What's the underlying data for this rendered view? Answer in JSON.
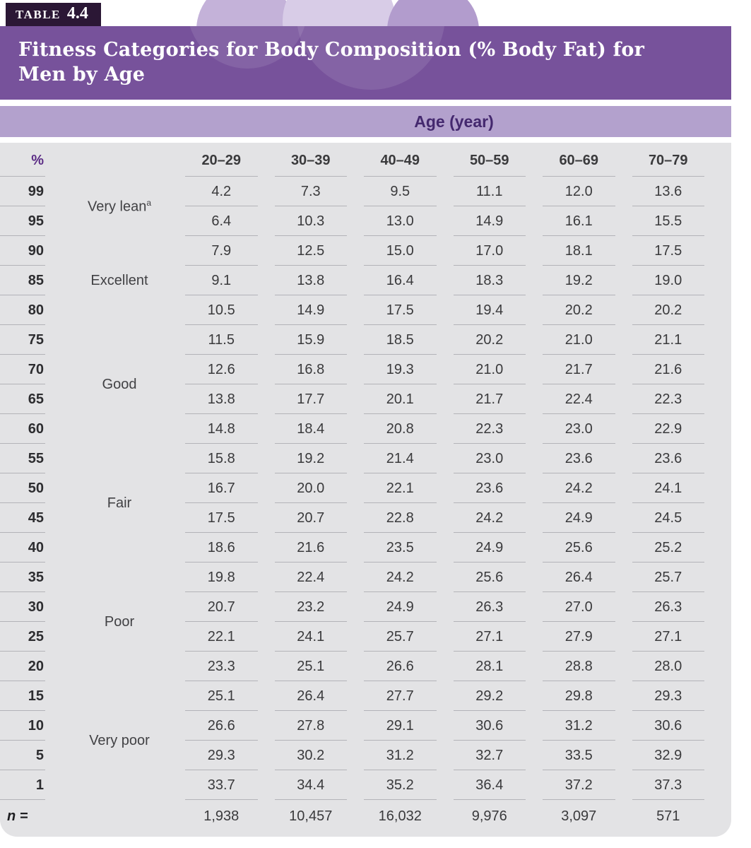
{
  "header": {
    "tab_label": "TABLE",
    "tab_number": "4.4",
    "title": "Fitness Categories for Body Composition (% Body Fat) for Men by Age"
  },
  "table": {
    "age_band_label": "Age (year)",
    "percent_header": "%",
    "age_columns": [
      "20–29",
      "30–39",
      "40–49",
      "50–59",
      "60–69",
      "70–79"
    ],
    "category_spans": [
      {
        "label": "Very lean",
        "sup": "a",
        "start": 0,
        "count": 2
      },
      {
        "label": "Excellent",
        "start": 2,
        "count": 3
      },
      {
        "label": "Good",
        "start": 5,
        "count": 4
      },
      {
        "label": "Fair",
        "start": 9,
        "count": 4
      },
      {
        "label": "Poor",
        "start": 13,
        "count": 4
      },
      {
        "label": "Very poor",
        "start": 17,
        "count": 4
      }
    ],
    "rows": [
      {
        "percentile": "99",
        "values": [
          "4.2",
          "7.3",
          "9.5",
          "11.1",
          "12.0",
          "13.6"
        ]
      },
      {
        "percentile": "95",
        "values": [
          "6.4",
          "10.3",
          "13.0",
          "14.9",
          "16.1",
          "15.5"
        ]
      },
      {
        "percentile": "90",
        "values": [
          "7.9",
          "12.5",
          "15.0",
          "17.0",
          "18.1",
          "17.5"
        ]
      },
      {
        "percentile": "85",
        "values": [
          "9.1",
          "13.8",
          "16.4",
          "18.3",
          "19.2",
          "19.0"
        ]
      },
      {
        "percentile": "80",
        "values": [
          "10.5",
          "14.9",
          "17.5",
          "19.4",
          "20.2",
          "20.2"
        ]
      },
      {
        "percentile": "75",
        "values": [
          "11.5",
          "15.9",
          "18.5",
          "20.2",
          "21.0",
          "21.1"
        ]
      },
      {
        "percentile": "70",
        "values": [
          "12.6",
          "16.8",
          "19.3",
          "21.0",
          "21.7",
          "21.6"
        ]
      },
      {
        "percentile": "65",
        "values": [
          "13.8",
          "17.7",
          "20.1",
          "21.7",
          "22.4",
          "22.3"
        ]
      },
      {
        "percentile": "60",
        "values": [
          "14.8",
          "18.4",
          "20.8",
          "22.3",
          "23.0",
          "22.9"
        ]
      },
      {
        "percentile": "55",
        "values": [
          "15.8",
          "19.2",
          "21.4",
          "23.0",
          "23.6",
          "23.6"
        ]
      },
      {
        "percentile": "50",
        "values": [
          "16.7",
          "20.0",
          "22.1",
          "23.6",
          "24.2",
          "24.1"
        ]
      },
      {
        "percentile": "45",
        "values": [
          "17.5",
          "20.7",
          "22.8",
          "24.2",
          "24.9",
          "24.5"
        ]
      },
      {
        "percentile": "40",
        "values": [
          "18.6",
          "21.6",
          "23.5",
          "24.9",
          "25.6",
          "25.2"
        ]
      },
      {
        "percentile": "35",
        "values": [
          "19.8",
          "22.4",
          "24.2",
          "25.6",
          "26.4",
          "25.7"
        ]
      },
      {
        "percentile": "30",
        "values": [
          "20.7",
          "23.2",
          "24.9",
          "26.3",
          "27.0",
          "26.3"
        ]
      },
      {
        "percentile": "25",
        "values": [
          "22.1",
          "24.1",
          "25.7",
          "27.1",
          "27.9",
          "27.1"
        ]
      },
      {
        "percentile": "20",
        "values": [
          "23.3",
          "25.1",
          "26.6",
          "28.1",
          "28.8",
          "28.0"
        ]
      },
      {
        "percentile": "15",
        "values": [
          "25.1",
          "26.4",
          "27.7",
          "29.2",
          "29.8",
          "29.3"
        ]
      },
      {
        "percentile": "10",
        "values": [
          "26.6",
          "27.8",
          "29.1",
          "30.6",
          "31.2",
          "30.6"
        ]
      },
      {
        "percentile": "5",
        "values": [
          "29.3",
          "30.2",
          "31.2",
          "32.7",
          "33.5",
          "32.9"
        ]
      },
      {
        "percentile": "1",
        "values": [
          "33.7",
          "34.4",
          "35.2",
          "36.4",
          "37.2",
          "37.3"
        ]
      }
    ],
    "n_label": "n =",
    "n_values": [
      "1,938",
      "10,457",
      "16,032",
      "9,976",
      "3,097",
      "571"
    ]
  },
  "colors": {
    "tab_bg": "#2b1735",
    "title_band_bg": "#77529b",
    "age_band_bg": "#b3a1cd",
    "body_bg": "#e3e3e5",
    "header_text": "#5b2c85",
    "row_line": "#b3b3b8"
  }
}
